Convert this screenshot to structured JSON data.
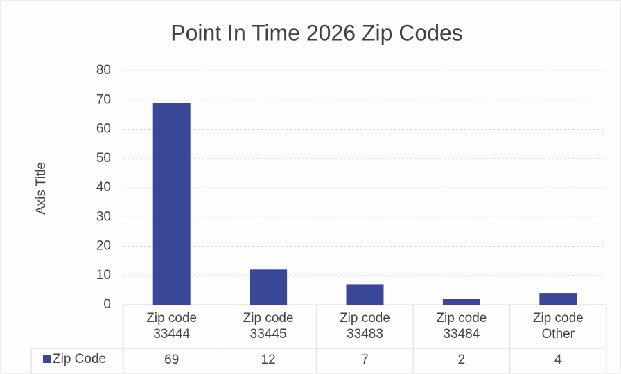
{
  "chart_data": {
    "type": "bar",
    "title": "Point In Time 2026 Zip Codes",
    "y_axis_label": "Axis Title",
    "categories": [
      "Zip code 33444",
      "Zip code 33445",
      "Zip code 33483",
      "Zip code 33484",
      "Zip code Other"
    ],
    "series": [
      {
        "name": "Zip Code",
        "color": "#3a4799",
        "values": [
          69,
          12,
          7,
          2,
          4
        ]
      }
    ],
    "ylim": [
      0,
      80
    ],
    "yticks": [
      0,
      10,
      20,
      30,
      40,
      50,
      60,
      70,
      80
    ],
    "grid": true,
    "data_table": true
  }
}
